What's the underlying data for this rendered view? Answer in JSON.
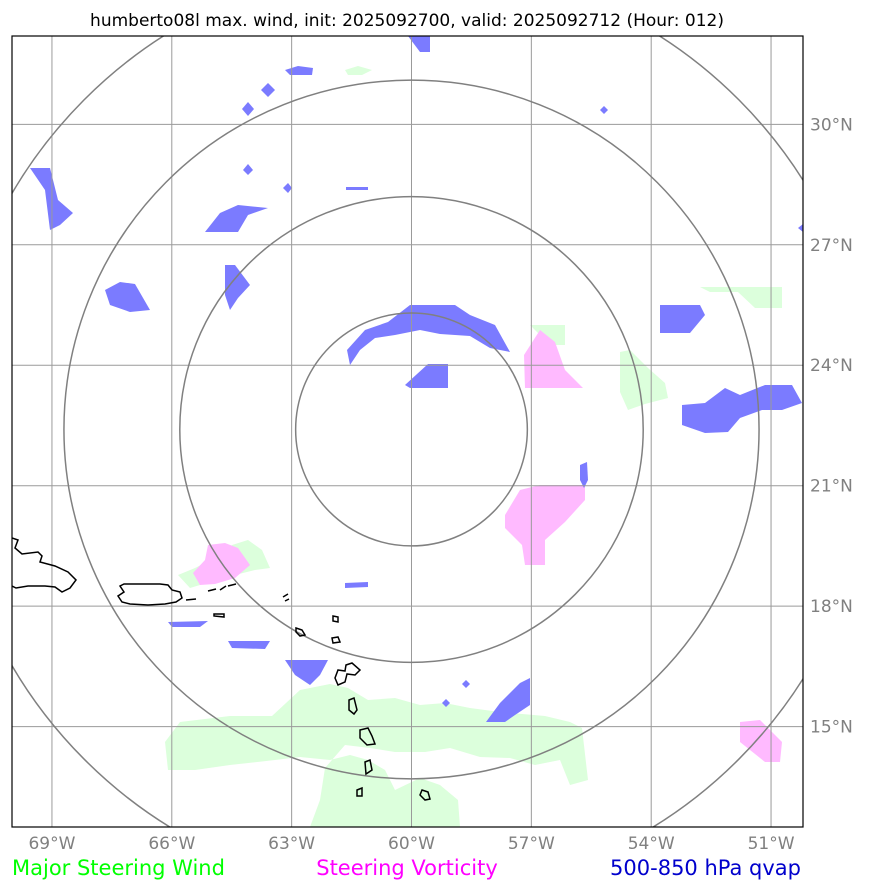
{
  "title": "humberto08l max. wind, init: 2025092700, valid: 2025092712 (Hour: 012)",
  "map": {
    "lon_range": [
      -70,
      -50.2
    ],
    "lat_range": [
      12.5,
      32.2
    ],
    "center": {
      "lon": -60,
      "lat": 22.4
    },
    "ring_radii_deg": [
      2.9,
      5.8,
      8.7,
      11.6
    ],
    "grid_lons": [
      -69,
      -66,
      -63,
      -60,
      -57,
      -54,
      -51
    ],
    "grid_lats": [
      15,
      18,
      21,
      24,
      27,
      30
    ],
    "lon_labels": [
      "69°W",
      "66°W",
      "63°W",
      "60°W",
      "57°W",
      "54°W",
      "51°W"
    ],
    "lat_labels": [
      "15°N",
      "18°N",
      "21°N",
      "24°N",
      "27°N",
      "30°N"
    ]
  },
  "colors": {
    "qvap": "#7b7bff",
    "vorticity": "#ffbaff",
    "wind": "#dcffdc",
    "grid": "#9a9a9a",
    "ring": "#808080",
    "coast": "#000000"
  },
  "legend": {
    "wind": {
      "label": "Major Steering Wind",
      "color": "#00ff00"
    },
    "vorticity": {
      "label": "Steering Vorticity",
      "color": "#ff00ff"
    },
    "qvap": {
      "label": "500-850 hPa qvap",
      "color": "#0000cc"
    }
  }
}
